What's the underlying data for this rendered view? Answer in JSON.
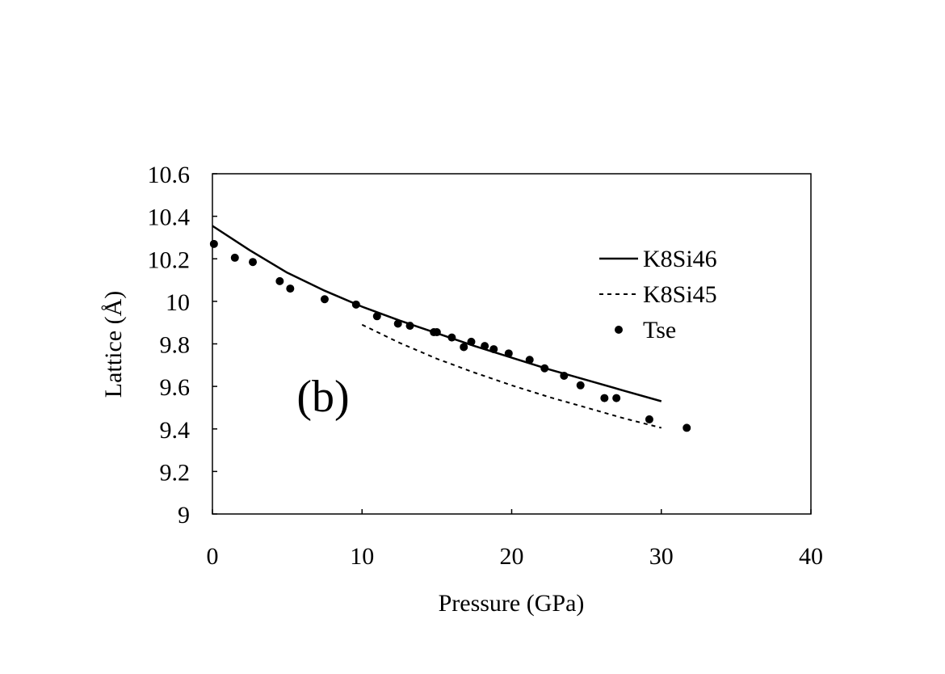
{
  "chart_data": {
    "type": "scatter",
    "title": "",
    "panel_label": "(b)",
    "xlabel": "Pressure (GPa)",
    "ylabel": "Lattice (Å)",
    "xlim": [
      0,
      40
    ],
    "ylim": [
      9,
      10.6
    ],
    "x_ticks": [
      0,
      10,
      20,
      30,
      40
    ],
    "x_tick_labels": [
      "0",
      "10",
      "20",
      "30",
      "40"
    ],
    "y_ticks": [
      9,
      9.2,
      9.4,
      9.6,
      9.8,
      10,
      10.2,
      10.4,
      10.6
    ],
    "y_tick_labels": [
      "9",
      "9.2",
      "9.4",
      "9.6",
      "9.8",
      "10",
      "10.2",
      "10.4",
      "10.6"
    ],
    "grid": false,
    "legend_position": "top-right",
    "series": [
      {
        "name": "K8Si46",
        "style": "solid-line",
        "x": [
          0,
          2.5,
          5,
          7.5,
          10,
          12.5,
          15,
          17.5,
          20,
          22.5,
          25,
          27.5,
          30
        ],
        "y": [
          10.355,
          10.24,
          10.135,
          10.05,
          9.975,
          9.91,
          9.85,
          9.79,
          9.735,
          9.68,
          9.63,
          9.58,
          9.53
        ]
      },
      {
        "name": "K8Si45",
        "style": "dashed-line",
        "x": [
          10,
          12.5,
          15,
          17.5,
          20,
          22.5,
          25,
          27.5,
          30
        ],
        "y": [
          9.89,
          9.805,
          9.73,
          9.665,
          9.605,
          9.55,
          9.5,
          9.45,
          9.405
        ]
      },
      {
        "name": "Tse",
        "style": "markers",
        "x": [
          0.1,
          1.5,
          2.7,
          4.5,
          5.2,
          7.5,
          9.6,
          11.0,
          12.4,
          13.2,
          14.8,
          15.0,
          16.0,
          16.8,
          17.3,
          18.2,
          18.8,
          19.8,
          21.2,
          22.2,
          23.5,
          24.6,
          26.2,
          27.0,
          29.2,
          31.7
        ],
        "y": [
          10.27,
          10.205,
          10.185,
          10.095,
          10.06,
          10.01,
          9.985,
          9.93,
          9.895,
          9.885,
          9.855,
          9.855,
          9.83,
          9.785,
          9.81,
          9.79,
          9.775,
          9.755,
          9.725,
          9.685,
          9.65,
          9.605,
          9.545,
          9.545,
          9.445,
          9.405
        ]
      }
    ]
  }
}
